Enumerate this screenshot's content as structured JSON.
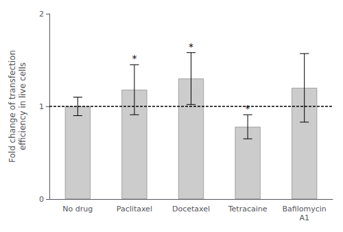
{
  "chart_data": {
    "type": "bar",
    "categories": [
      "No drug",
      "Paclitaxel",
      "Docetaxel",
      "Tetracaine",
      "Bafilomycin\nA1"
    ],
    "values": [
      1.0,
      1.18,
      1.3,
      0.78,
      1.2
    ],
    "errors": [
      0.1,
      0.27,
      0.28,
      0.13,
      0.37
    ],
    "color": "#cccccc",
    "hline": 1.0,
    "annotations": [
      {
        "category": "Paclitaxel",
        "text": "*"
      },
      {
        "category": "Docetaxel",
        "text": "*"
      },
      {
        "category": "Tetracaine",
        "text": "*"
      }
    ],
    "ylabel": "Fold change of transfection\nefficiency in live cells",
    "ylim": [
      0,
      2
    ],
    "yticks": [
      0,
      1,
      2
    ],
    "grid": false
  }
}
